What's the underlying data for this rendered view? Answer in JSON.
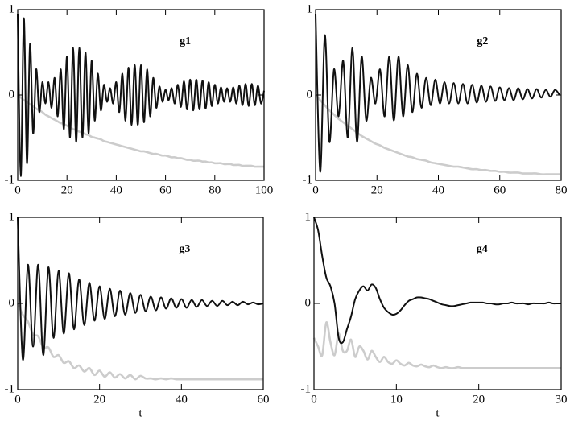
{
  "chart_data": [
    {
      "type": "line",
      "title": "g1",
      "xlim": [
        0,
        100
      ],
      "ylim": [
        -1,
        1
      ],
      "xticks": [
        0,
        20,
        40,
        60,
        80,
        100
      ],
      "yticks": [
        -1,
        0,
        1
      ],
      "x": [
        0,
        1.25,
        2.5,
        3.75,
        5,
        6.25,
        7.5,
        8.75,
        10,
        11.25,
        12.5,
        13.75,
        15,
        16.25,
        17.5,
        18.75,
        20,
        21.25,
        22.5,
        23.75,
        25,
        26.25,
        27.5,
        28.75,
        30,
        31.25,
        32.5,
        33.75,
        35,
        36.25,
        37.5,
        38.75,
        40,
        41.25,
        42.5,
        43.75,
        45,
        46.25,
        47.5,
        48.75,
        50,
        51.25,
        52.5,
        53.75,
        55,
        56.25,
        57.5,
        58.75,
        60,
        61.25,
        62.5,
        63.75,
        65,
        66.25,
        67.5,
        68.75,
        70,
        71.25,
        72.5,
        73.75,
        75,
        76.25,
        77.5,
        78.75,
        80,
        81.25,
        82.5,
        83.75,
        85,
        86.25,
        87.5,
        88.75,
        90,
        91.25,
        92.5,
        93.75,
        95,
        96.25,
        97.5,
        98.75,
        100
      ],
      "series": [
        {
          "color": "#111111",
          "values": [
            0.95,
            -0.95,
            0.9,
            -0.8,
            0.6,
            -0.45,
            0.3,
            -0.2,
            0.15,
            -0.1,
            0.15,
            -0.15,
            0.2,
            -0.25,
            0.3,
            -0.4,
            0.45,
            -0.5,
            0.55,
            -0.55,
            0.55,
            -0.5,
            0.5,
            -0.45,
            0.4,
            -0.3,
            0.25,
            -0.18,
            0.12,
            -0.08,
            0.08,
            -0.1,
            0.15,
            -0.2,
            0.25,
            -0.3,
            0.32,
            -0.35,
            0.35,
            -0.35,
            0.35,
            -0.32,
            0.3,
            -0.25,
            0.2,
            -0.15,
            0.1,
            -0.08,
            0.06,
            -0.06,
            0.08,
            -0.1,
            0.12,
            -0.14,
            0.16,
            -0.17,
            0.18,
            -0.18,
            0.18,
            -0.17,
            0.17,
            -0.16,
            0.15,
            -0.13,
            0.12,
            -0.1,
            0.09,
            -0.08,
            0.08,
            -0.08,
            0.09,
            -0.1,
            0.11,
            -0.12,
            0.13,
            -0.13,
            0.13,
            -0.12,
            0.11,
            -0.1,
            0.05
          ]
        },
        {
          "color": "#cccccc",
          "values": [
            0,
            -0.03,
            -0.06,
            -0.08,
            -0.11,
            -0.13,
            -0.16,
            -0.18,
            -0.2,
            -0.23,
            -0.25,
            -0.27,
            -0.29,
            -0.31,
            -0.33,
            -0.34,
            -0.36,
            -0.38,
            -0.4,
            -0.41,
            -0.43,
            -0.44,
            -0.46,
            -0.47,
            -0.49,
            -0.5,
            -0.51,
            -0.52,
            -0.54,
            -0.55,
            -0.56,
            -0.57,
            -0.58,
            -0.59,
            -0.6,
            -0.61,
            -0.62,
            -0.63,
            -0.64,
            -0.65,
            -0.66,
            -0.66,
            -0.67,
            -0.68,
            -0.69,
            -0.69,
            -0.7,
            -0.71,
            -0.71,
            -0.72,
            -0.73,
            -0.73,
            -0.74,
            -0.74,
            -0.75,
            -0.76,
            -0.76,
            -0.77,
            -0.77,
            -0.77,
            -0.78,
            -0.78,
            -0.79,
            -0.79,
            -0.8,
            -0.8,
            -0.8,
            -0.81,
            -0.81,
            -0.81,
            -0.82,
            -0.82,
            -0.82,
            -0.83,
            -0.83,
            -0.83,
            -0.83,
            -0.84,
            -0.84,
            -0.84,
            -0.84
          ]
        }
      ]
    },
    {
      "type": "line",
      "title": "g2",
      "xlim": [
        0,
        80
      ],
      "ylim": [
        -1,
        1
      ],
      "xticks": [
        0,
        20,
        40,
        60,
        80
      ],
      "yticks": [
        -1,
        0,
        1
      ],
      "x": [
        0,
        1.5,
        3,
        4.5,
        6,
        7.5,
        9,
        10.5,
        12,
        13.5,
        15,
        16.5,
        18,
        19.5,
        21,
        22.5,
        24,
        25.5,
        27,
        28.5,
        30,
        31.5,
        33,
        34.5,
        36,
        37.5,
        39,
        40.5,
        42,
        43.5,
        45,
        46.5,
        48,
        49.5,
        51,
        52.5,
        54,
        55.5,
        57,
        58.5,
        60,
        61.5,
        63,
        64.5,
        66,
        67.5,
        69,
        70.5,
        72,
        73.5,
        75,
        76.5,
        78,
        79.5
      ],
      "series": [
        {
          "color": "#111111",
          "values": [
            0.95,
            -0.9,
            0.7,
            -0.55,
            0.3,
            -0.25,
            0.4,
            -0.5,
            0.55,
            -0.55,
            0.45,
            -0.3,
            0.2,
            -0.1,
            0.3,
            -0.25,
            0.45,
            -0.3,
            0.45,
            -0.25,
            0.35,
            -0.2,
            0.25,
            -0.15,
            0.2,
            -0.12,
            0.18,
            -0.1,
            0.15,
            -0.1,
            0.14,
            -0.1,
            0.13,
            -0.1,
            0.12,
            -0.09,
            0.11,
            -0.08,
            0.1,
            -0.07,
            0.09,
            -0.06,
            0.08,
            -0.06,
            0.08,
            -0.05,
            0.07,
            -0.04,
            0.07,
            -0.03,
            0.06,
            -0.02,
            0.06,
            0
          ]
        },
        {
          "color": "#cccccc",
          "values": [
            0,
            -0.06,
            -0.12,
            -0.18,
            -0.23,
            -0.28,
            -0.32,
            -0.36,
            -0.4,
            -0.44,
            -0.48,
            -0.51,
            -0.54,
            -0.57,
            -0.59,
            -0.62,
            -0.64,
            -0.66,
            -0.68,
            -0.7,
            -0.72,
            -0.73,
            -0.75,
            -0.76,
            -0.77,
            -0.79,
            -0.8,
            -0.81,
            -0.82,
            -0.83,
            -0.84,
            -0.84,
            -0.85,
            -0.86,
            -0.87,
            -0.87,
            -0.88,
            -0.88,
            -0.89,
            -0.89,
            -0.9,
            -0.9,
            -0.91,
            -0.91,
            -0.91,
            -0.92,
            -0.92,
            -0.92,
            -0.92,
            -0.93,
            -0.93,
            -0.93,
            -0.93,
            -0.93
          ]
        }
      ]
    },
    {
      "type": "line",
      "title": "g3",
      "xlabel": "t",
      "xlim": [
        0,
        60
      ],
      "ylim": [
        -1,
        1
      ],
      "xticks": [
        0,
        20,
        40,
        60
      ],
      "yticks": [
        -1,
        0,
        1
      ],
      "x": [
        0,
        1.25,
        2.5,
        3.75,
        5,
        6.25,
        7.5,
        8.75,
        10,
        11.25,
        12.5,
        13.75,
        15,
        16.25,
        17.5,
        18.75,
        20,
        21.25,
        22.5,
        23.75,
        25,
        26.25,
        27.5,
        28.75,
        30,
        31.25,
        32.5,
        33.75,
        35,
        36.25,
        37.5,
        38.75,
        40,
        41.25,
        42.5,
        43.75,
        45,
        46.25,
        47.5,
        48.75,
        50,
        51.25,
        52.5,
        53.75,
        55,
        56.25,
        57.5,
        58.75,
        60
      ],
      "series": [
        {
          "color": "#111111",
          "values": [
            1.0,
            -0.65,
            0.45,
            -0.5,
            0.45,
            -0.6,
            0.42,
            -0.4,
            0.38,
            -0.35,
            0.35,
            -0.3,
            0.28,
            -0.25,
            0.24,
            -0.2,
            0.2,
            -0.18,
            0.17,
            -0.15,
            0.15,
            -0.13,
            0.12,
            -0.11,
            0.1,
            -0.09,
            0.08,
            -0.08,
            0.07,
            -0.06,
            0.06,
            -0.05,
            0.05,
            -0.05,
            0.04,
            -0.04,
            0.04,
            -0.03,
            0.03,
            -0.03,
            0.03,
            -0.02,
            0.02,
            -0.02,
            0.02,
            -0.01,
            0.01,
            -0.01,
            0
          ]
        },
        {
          "color": "#cccccc",
          "values": [
            0,
            -0.13,
            -0.21,
            -0.36,
            -0.38,
            -0.51,
            -0.51,
            -0.62,
            -0.6,
            -0.69,
            -0.67,
            -0.75,
            -0.72,
            -0.79,
            -0.75,
            -0.83,
            -0.78,
            -0.85,
            -0.8,
            -0.86,
            -0.82,
            -0.87,
            -0.83,
            -0.88,
            -0.84,
            -0.87,
            -0.87,
            -0.88,
            -0.87,
            -0.88,
            -0.87,
            -0.88,
            -0.88,
            -0.88,
            -0.88,
            -0.88,
            -0.88,
            -0.88,
            -0.88,
            -0.88,
            -0.88,
            -0.88,
            -0.88,
            -0.88,
            -0.88,
            -0.88,
            -0.88,
            -0.88,
            -0.88
          ]
        }
      ]
    },
    {
      "type": "line",
      "title": "g4",
      "xlabel": "t",
      "xlim": [
        0,
        30
      ],
      "ylim": [
        -1,
        1
      ],
      "xticks": [
        0,
        10,
        20,
        30
      ],
      "yticks": [
        -1,
        0,
        1
      ],
      "x": [
        0,
        0.5,
        1,
        1.5,
        2,
        2.5,
        3,
        3.5,
        4,
        4.5,
        5,
        5.5,
        6,
        6.5,
        7,
        7.5,
        8,
        8.5,
        9,
        9.5,
        10,
        10.5,
        11,
        11.5,
        12,
        12.5,
        13,
        13.5,
        14,
        14.5,
        15,
        15.5,
        16,
        16.5,
        17,
        17.5,
        18,
        18.5,
        19,
        19.5,
        20,
        20.5,
        21,
        21.5,
        22,
        22.5,
        23,
        23.5,
        24,
        24.5,
        25,
        25.5,
        26,
        26.5,
        27,
        27.5,
        28,
        28.5,
        29,
        29.5,
        30
      ],
      "series": [
        {
          "color": "#111111",
          "values": [
            1.0,
            0.85,
            0.55,
            0.3,
            0.2,
            0,
            -0.4,
            -0.45,
            -0.3,
            -0.15,
            0.05,
            0.15,
            0.2,
            0.15,
            0.22,
            0.18,
            0.05,
            -0.05,
            -0.1,
            -0.13,
            -0.12,
            -0.08,
            -0.02,
            0.03,
            0.05,
            0.07,
            0.07,
            0.06,
            0.05,
            0.03,
            0.01,
            -0.01,
            -0.02,
            -0.03,
            -0.03,
            -0.02,
            -0.01,
            0,
            0.01,
            0.01,
            0.01,
            0.01,
            0,
            0,
            -0.01,
            -0.01,
            0,
            0,
            0.01,
            0,
            0,
            0,
            -0.01,
            0,
            0,
            0,
            0,
            0.01,
            0,
            0,
            0
          ]
        },
        {
          "color": "#cccccc",
          "values": [
            -0.4,
            -0.5,
            -0.6,
            -0.22,
            -0.45,
            -0.6,
            -0.35,
            -0.55,
            -0.55,
            -0.42,
            -0.62,
            -0.5,
            -0.55,
            -0.65,
            -0.55,
            -0.62,
            -0.68,
            -0.62,
            -0.68,
            -0.7,
            -0.66,
            -0.7,
            -0.72,
            -0.69,
            -0.72,
            -0.73,
            -0.71,
            -0.73,
            -0.74,
            -0.72,
            -0.74,
            -0.75,
            -0.74,
            -0.75,
            -0.75,
            -0.74,
            -0.75,
            -0.75,
            -0.75,
            -0.75,
            -0.75,
            -0.75,
            -0.75,
            -0.75,
            -0.75,
            -0.75,
            -0.75,
            -0.75,
            -0.75,
            -0.75,
            -0.75,
            -0.75,
            -0.75,
            -0.75,
            -0.75,
            -0.75,
            -0.75,
            -0.75,
            -0.75,
            -0.75,
            -0.75
          ]
        }
      ]
    }
  ]
}
